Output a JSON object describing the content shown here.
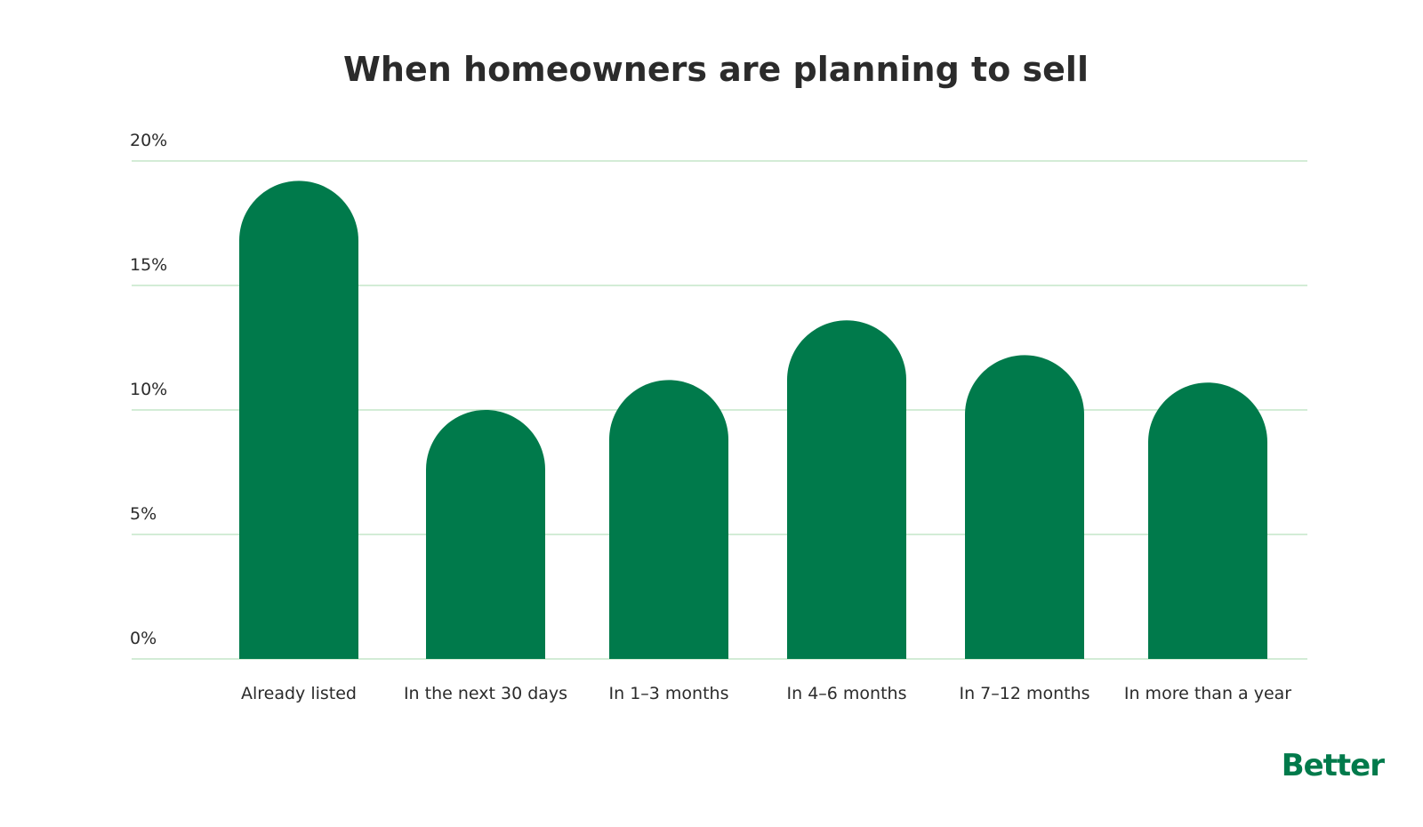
{
  "chart_data": {
    "type": "bar",
    "title": "When homeowners are planning to sell",
    "xlabel": "",
    "ylabel": "",
    "categories": [
      "Already listed",
      "In the next 30 days",
      "In 1–3 months",
      "In 4–6 months",
      "In 7–12 months",
      "In more than a year"
    ],
    "values": [
      19.2,
      10.0,
      11.2,
      13.6,
      12.2,
      11.1
    ],
    "ylim": [
      0,
      20
    ],
    "yticks": [
      "0%",
      "5%",
      "10%",
      "15%",
      "20%"
    ],
    "ytick_values": [
      0,
      5,
      10,
      15,
      20
    ],
    "grid": true,
    "bar_color": "#007a4b",
    "grid_color": "#d3ecd6"
  },
  "brand": {
    "logo_text": "Better",
    "color": "#007a4b"
  }
}
